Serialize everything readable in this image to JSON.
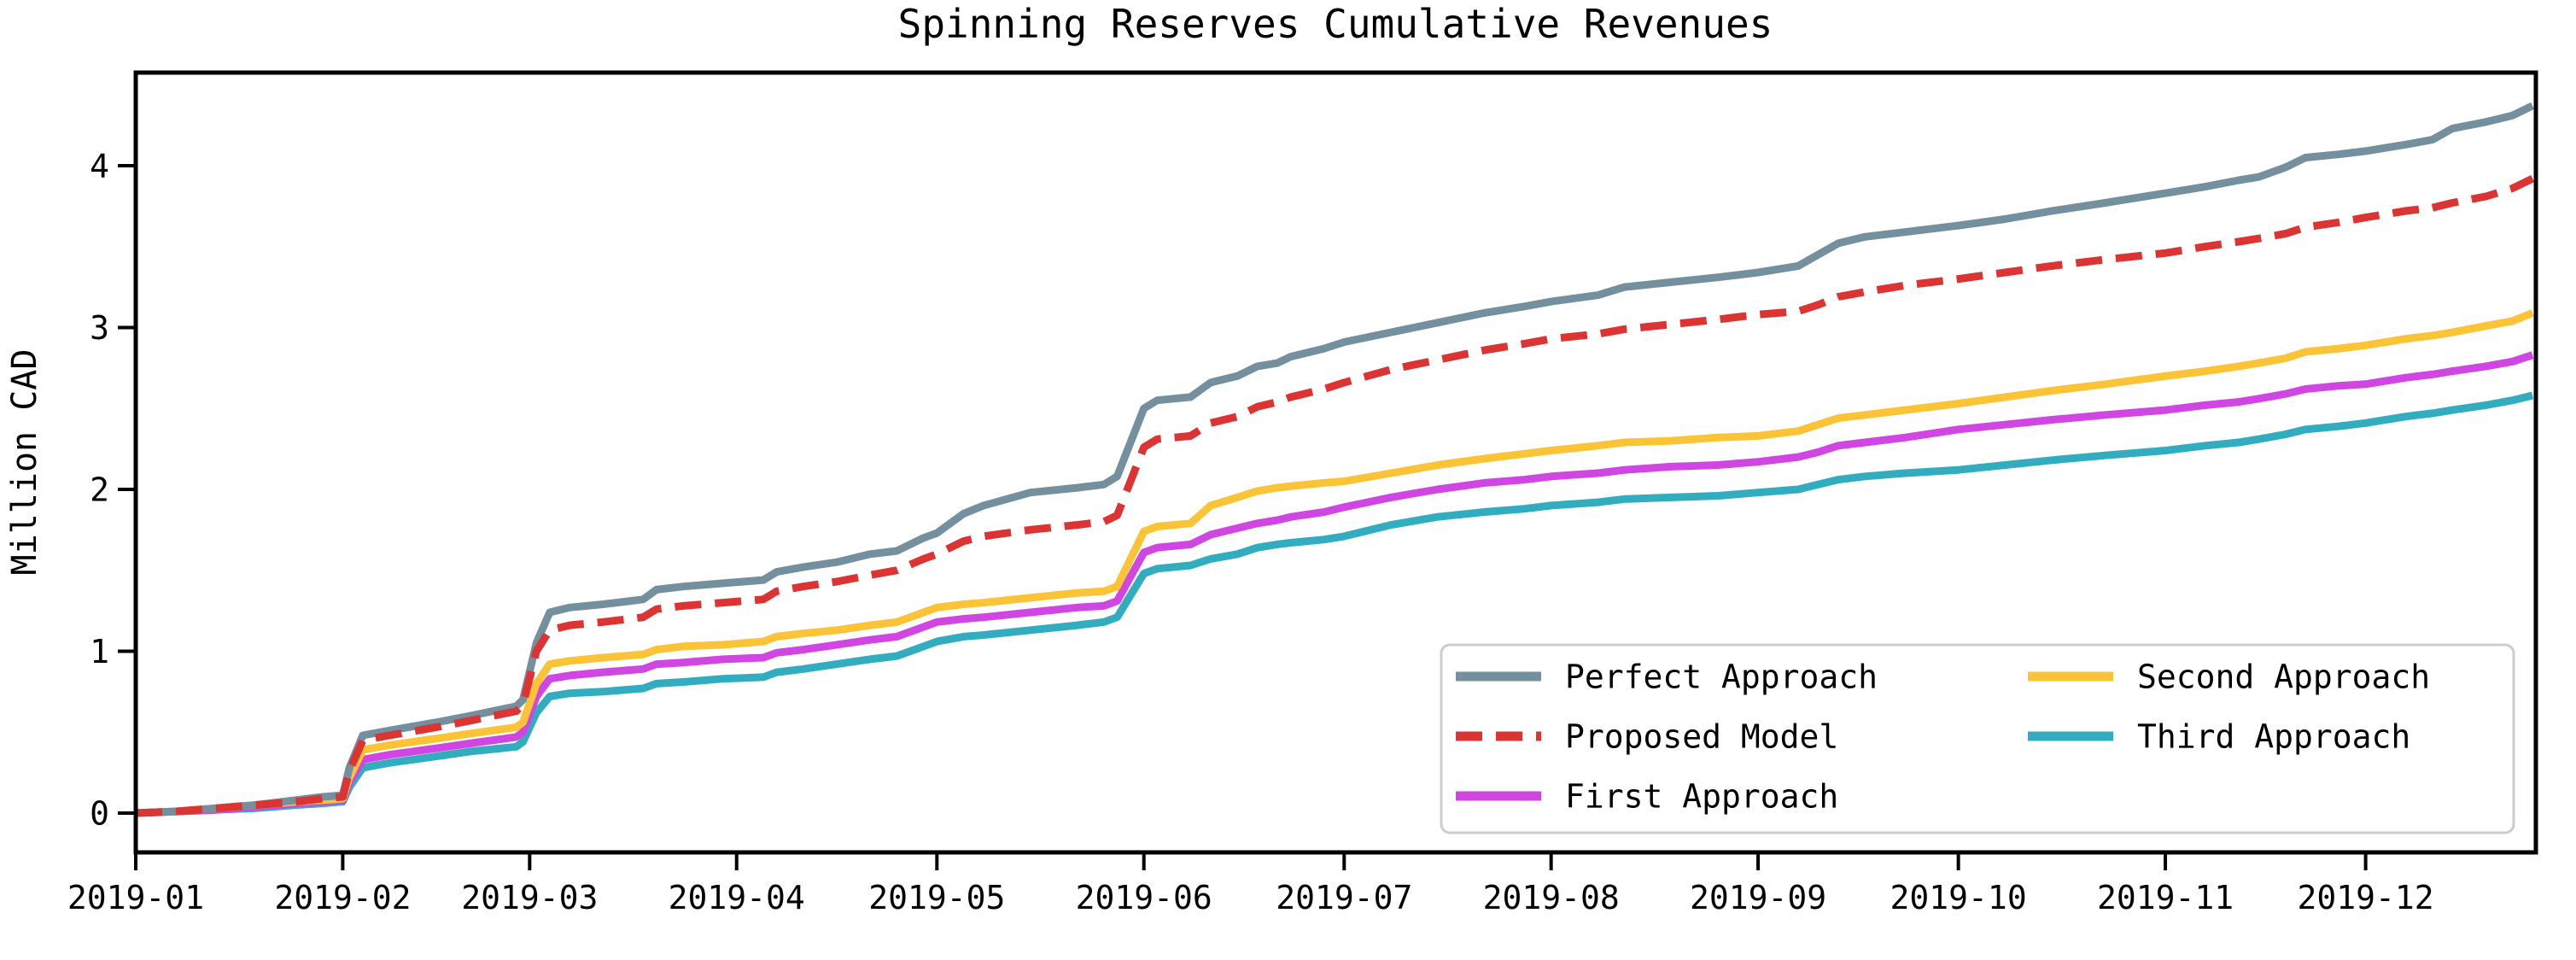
{
  "chart_data": {
    "type": "line",
    "title": "Spinning Reserves Cumulative Revenues",
    "ylabel": "Million CAD",
    "xlabel": "",
    "x_unit": "days since 2019-01-01",
    "xlim": [
      0,
      359.5
    ],
    "ylim": [
      -0.243,
      4.575
    ],
    "grid": false,
    "background_color": "#ffffff",
    "axis_color": "#000000",
    "legend": {
      "position": "lower right",
      "columns": 2,
      "border_color": "#cccccc",
      "fill_color": "#ffffff"
    },
    "y_ticks": [
      {
        "value": 0,
        "label": "0"
      },
      {
        "value": 1,
        "label": "1"
      },
      {
        "value": 2,
        "label": "2"
      },
      {
        "value": 3,
        "label": "3"
      },
      {
        "value": 4,
        "label": "4"
      }
    ],
    "x_ticks": [
      {
        "day": 0,
        "label": "2019-01"
      },
      {
        "day": 31,
        "label": "2019-02"
      },
      {
        "day": 59,
        "label": "2019-03"
      },
      {
        "day": 90,
        "label": "2019-04"
      },
      {
        "day": 120,
        "label": "2019-05"
      },
      {
        "day": 151,
        "label": "2019-06"
      },
      {
        "day": 181,
        "label": "2019-07"
      },
      {
        "day": 212,
        "label": "2019-08"
      },
      {
        "day": 243,
        "label": "2019-09"
      },
      {
        "day": 273,
        "label": "2019-10"
      },
      {
        "day": 304,
        "label": "2019-11"
      },
      {
        "day": 334,
        "label": "2019-12"
      }
    ],
    "x_days": [
      0,
      6,
      12,
      18,
      24,
      28,
      31,
      32,
      34,
      38,
      45,
      50,
      57,
      58,
      60,
      62,
      65,
      70,
      76,
      78,
      82,
      88,
      94,
      96,
      100,
      105,
      110,
      114,
      118,
      120,
      124,
      127,
      134,
      141,
      145,
      147,
      151,
      153,
      158,
      161,
      165,
      168,
      171,
      173,
      178,
      181,
      188,
      195,
      202,
      208,
      212,
      219,
      223,
      230,
      237,
      243,
      249,
      252,
      255,
      259,
      265,
      273,
      280,
      287,
      295,
      304,
      310,
      315,
      318,
      322,
      325,
      330,
      334,
      340,
      344,
      347,
      352,
      356,
      359
    ],
    "series": [
      {
        "name": "Perfect Approach",
        "color": "#748f9d",
        "style": "solid",
        "z": 3,
        "values": [
          0.0,
          0.01,
          0.03,
          0.05,
          0.08,
          0.1,
          0.11,
          0.28,
          0.48,
          0.51,
          0.56,
          0.6,
          0.66,
          0.7,
          1.05,
          1.24,
          1.27,
          1.29,
          1.32,
          1.38,
          1.4,
          1.42,
          1.44,
          1.49,
          1.52,
          1.55,
          1.6,
          1.62,
          1.7,
          1.73,
          1.85,
          1.9,
          1.98,
          2.01,
          2.03,
          2.08,
          2.5,
          2.55,
          2.57,
          2.66,
          2.7,
          2.76,
          2.78,
          2.82,
          2.87,
          2.91,
          2.97,
          3.03,
          3.09,
          3.13,
          3.16,
          3.2,
          3.25,
          3.28,
          3.31,
          3.34,
          3.38,
          3.45,
          3.52,
          3.56,
          3.59,
          3.63,
          3.67,
          3.72,
          3.77,
          3.83,
          3.87,
          3.91,
          3.93,
          3.99,
          4.05,
          4.07,
          4.09,
          4.13,
          4.16,
          4.23,
          4.27,
          4.31,
          4.37
        ]
      },
      {
        "name": "Proposed Model",
        "color": "#dc3333",
        "style": "dashed",
        "z": 4,
        "values": [
          0.0,
          0.01,
          0.03,
          0.05,
          0.07,
          0.09,
          0.1,
          0.26,
          0.45,
          0.48,
          0.53,
          0.57,
          0.63,
          0.67,
          1.0,
          1.13,
          1.16,
          1.18,
          1.21,
          1.26,
          1.28,
          1.3,
          1.32,
          1.37,
          1.4,
          1.43,
          1.47,
          1.5,
          1.57,
          1.6,
          1.68,
          1.71,
          1.75,
          1.78,
          1.8,
          1.84,
          2.26,
          2.31,
          2.33,
          2.41,
          2.45,
          2.51,
          2.54,
          2.57,
          2.62,
          2.66,
          2.74,
          2.8,
          2.86,
          2.9,
          2.93,
          2.96,
          2.99,
          3.02,
          3.05,
          3.08,
          3.1,
          3.14,
          3.19,
          3.22,
          3.26,
          3.3,
          3.34,
          3.38,
          3.42,
          3.46,
          3.5,
          3.53,
          3.55,
          3.58,
          3.62,
          3.65,
          3.68,
          3.72,
          3.74,
          3.77,
          3.81,
          3.86,
          3.92
        ]
      },
      {
        "name": "First Approach",
        "color": "#d046e2",
        "style": "solid",
        "z": 1,
        "values": [
          0.0,
          0.01,
          0.02,
          0.04,
          0.06,
          0.07,
          0.08,
          0.19,
          0.33,
          0.36,
          0.4,
          0.43,
          0.47,
          0.5,
          0.72,
          0.83,
          0.85,
          0.87,
          0.89,
          0.92,
          0.93,
          0.95,
          0.96,
          0.99,
          1.01,
          1.04,
          1.07,
          1.09,
          1.15,
          1.18,
          1.2,
          1.21,
          1.24,
          1.27,
          1.28,
          1.31,
          1.61,
          1.64,
          1.66,
          1.72,
          1.76,
          1.79,
          1.81,
          1.83,
          1.86,
          1.89,
          1.95,
          2.0,
          2.04,
          2.06,
          2.08,
          2.1,
          2.12,
          2.14,
          2.15,
          2.17,
          2.2,
          2.23,
          2.27,
          2.29,
          2.32,
          2.37,
          2.4,
          2.43,
          2.46,
          2.49,
          2.52,
          2.54,
          2.56,
          2.59,
          2.62,
          2.64,
          2.65,
          2.69,
          2.71,
          2.73,
          2.76,
          2.79,
          2.83
        ]
      },
      {
        "name": "Second Approach",
        "color": "#fbc437",
        "style": "solid",
        "z": 2,
        "values": [
          0.0,
          0.01,
          0.03,
          0.05,
          0.07,
          0.08,
          0.09,
          0.22,
          0.39,
          0.42,
          0.46,
          0.49,
          0.53,
          0.56,
          0.8,
          0.92,
          0.94,
          0.96,
          0.98,
          1.01,
          1.03,
          1.04,
          1.06,
          1.09,
          1.11,
          1.13,
          1.16,
          1.18,
          1.24,
          1.27,
          1.29,
          1.3,
          1.33,
          1.36,
          1.37,
          1.4,
          1.74,
          1.77,
          1.79,
          1.9,
          1.95,
          1.99,
          2.01,
          2.02,
          2.04,
          2.05,
          2.1,
          2.15,
          2.19,
          2.22,
          2.24,
          2.27,
          2.29,
          2.3,
          2.32,
          2.33,
          2.36,
          2.4,
          2.44,
          2.46,
          2.49,
          2.53,
          2.57,
          2.61,
          2.65,
          2.7,
          2.73,
          2.76,
          2.78,
          2.81,
          2.85,
          2.87,
          2.89,
          2.93,
          2.95,
          2.97,
          3.01,
          3.04,
          3.09
        ]
      },
      {
        "name": "Third Approach",
        "color": "#32adc0",
        "style": "solid",
        "z": 0,
        "values": [
          0.0,
          0.01,
          0.02,
          0.03,
          0.05,
          0.06,
          0.07,
          0.16,
          0.28,
          0.31,
          0.35,
          0.38,
          0.41,
          0.44,
          0.62,
          0.72,
          0.74,
          0.75,
          0.77,
          0.8,
          0.81,
          0.83,
          0.84,
          0.87,
          0.89,
          0.92,
          0.95,
          0.97,
          1.03,
          1.06,
          1.09,
          1.1,
          1.13,
          1.16,
          1.18,
          1.21,
          1.48,
          1.51,
          1.53,
          1.57,
          1.6,
          1.64,
          1.66,
          1.67,
          1.69,
          1.71,
          1.78,
          1.83,
          1.86,
          1.88,
          1.9,
          1.92,
          1.94,
          1.95,
          1.96,
          1.98,
          2.0,
          2.03,
          2.06,
          2.08,
          2.1,
          2.12,
          2.15,
          2.18,
          2.21,
          2.24,
          2.27,
          2.29,
          2.31,
          2.34,
          2.37,
          2.39,
          2.41,
          2.45,
          2.47,
          2.49,
          2.52,
          2.55,
          2.58
        ]
      }
    ]
  }
}
